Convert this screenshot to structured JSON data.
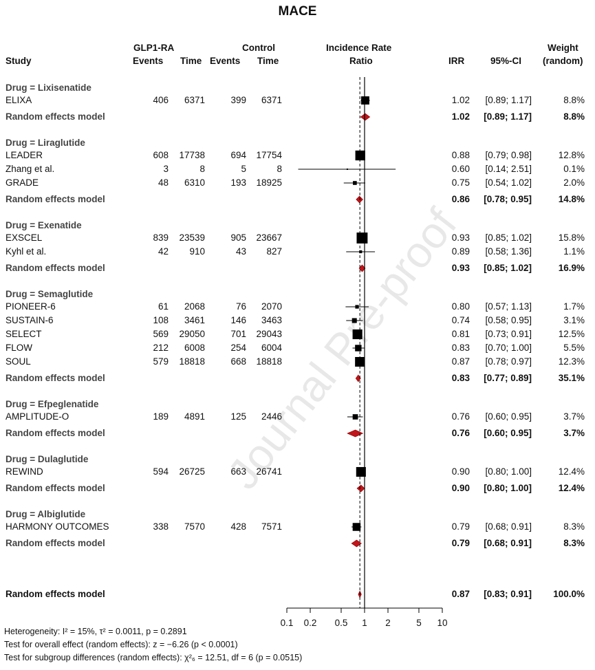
{
  "chart_data": {
    "type": "forest",
    "title": "MACE",
    "headers": {
      "study": "Study",
      "glp1": "GLP1-RA",
      "control": "Control",
      "events": "Events",
      "time": "Time",
      "effect_line1": "Incidence Rate",
      "effect_line2": "Ratio",
      "irr": "IRR",
      "ci": "95%-CI",
      "weight_line1": "Weight",
      "weight_line2": "(random)"
    },
    "x_axis": {
      "scale": "log",
      "ticks": [
        "0.1",
        "0.2",
        "0.5",
        "1",
        "2",
        "5",
        "10"
      ],
      "range": [
        0.1,
        10
      ],
      "null_line": 1
    },
    "groups": [
      {
        "label": "Drug = Lixisenatide",
        "studies": [
          {
            "name": "ELIXA",
            "e1": "406",
            "t1": "6371",
            "e2": "399",
            "t2": "6371",
            "irr": 1.02,
            "lo": 0.89,
            "hi": 1.17,
            "irr_text": "1.02",
            "ci_text": "[0.89; 1.17]",
            "weight": "8.8%"
          }
        ],
        "pooled": {
          "label": "Random effects model",
          "irr": 1.02,
          "lo": 0.89,
          "hi": 1.17,
          "irr_text": "1.02",
          "ci_text": "[0.89; 1.17]",
          "weight": "8.8%"
        }
      },
      {
        "label": "Drug = Liraglutide",
        "studies": [
          {
            "name": "LEADER",
            "e1": "608",
            "t1": "17738",
            "e2": "694",
            "t2": "17754",
            "irr": 0.88,
            "lo": 0.79,
            "hi": 0.98,
            "irr_text": "0.88",
            "ci_text": "[0.79; 0.98]",
            "weight": "12.8%"
          },
          {
            "name": "Zhang et al.",
            "e1": "3",
            "t1": "8",
            "e2": "5",
            "t2": "8",
            "irr": 0.6,
            "lo": 0.14,
            "hi": 2.51,
            "irr_text": "0.60",
            "ci_text": "[0.14; 2.51]",
            "weight": "0.1%"
          },
          {
            "name": "GRADE",
            "e1": "48",
            "t1": "6310",
            "e2": "193",
            "t2": "18925",
            "irr": 0.75,
            "lo": 0.54,
            "hi": 1.02,
            "irr_text": "0.75",
            "ci_text": "[0.54; 1.02]",
            "weight": "2.0%"
          }
        ],
        "pooled": {
          "label": "Random effects model",
          "irr": 0.86,
          "lo": 0.78,
          "hi": 0.95,
          "irr_text": "0.86",
          "ci_text": "[0.78; 0.95]",
          "weight": "14.8%"
        }
      },
      {
        "label": "Drug = Exenatide",
        "studies": [
          {
            "name": "EXSCEL",
            "e1": "839",
            "t1": "23539",
            "e2": "905",
            "t2": "23667",
            "irr": 0.93,
            "lo": 0.85,
            "hi": 1.02,
            "irr_text": "0.93",
            "ci_text": "[0.85; 1.02]",
            "weight": "15.8%"
          },
          {
            "name": "Kyhl et al.",
            "e1": "42",
            "t1": "910",
            "e2": "43",
            "t2": "827",
            "irr": 0.89,
            "lo": 0.58,
            "hi": 1.36,
            "irr_text": "0.89",
            "ci_text": "[0.58; 1.36]",
            "weight": "1.1%"
          }
        ],
        "pooled": {
          "label": "Random effects model",
          "irr": 0.93,
          "lo": 0.85,
          "hi": 1.02,
          "irr_text": "0.93",
          "ci_text": "[0.85; 1.02]",
          "weight": "16.9%"
        }
      },
      {
        "label": "Drug = Semaglutide",
        "studies": [
          {
            "name": "PIONEER-6",
            "e1": "61",
            "t1": "2068",
            "e2": "76",
            "t2": "2070",
            "irr": 0.8,
            "lo": 0.57,
            "hi": 1.13,
            "irr_text": "0.80",
            "ci_text": "[0.57; 1.13]",
            "weight": "1.7%"
          },
          {
            "name": "SUSTAIN-6",
            "e1": "108",
            "t1": "3461",
            "e2": "146",
            "t2": "3463",
            "irr": 0.74,
            "lo": 0.58,
            "hi": 0.95,
            "irr_text": "0.74",
            "ci_text": "[0.58; 0.95]",
            "weight": "3.1%"
          },
          {
            "name": "SELECT",
            "e1": "569",
            "t1": "29050",
            "e2": "701",
            "t2": "29043",
            "irr": 0.81,
            "lo": 0.73,
            "hi": 0.91,
            "irr_text": "0.81",
            "ci_text": "[0.73; 0.91]",
            "weight": "12.5%"
          },
          {
            "name": "FLOW",
            "e1": "212",
            "t1": "6008",
            "e2": "254",
            "t2": "6004",
            "irr": 0.83,
            "lo": 0.7,
            "hi": 1.0,
            "irr_text": "0.83",
            "ci_text": "[0.70; 1.00]",
            "weight": "5.5%"
          },
          {
            "name": "SOUL",
            "e1": "579",
            "t1": "18818",
            "e2": "668",
            "t2": "18818",
            "irr": 0.87,
            "lo": 0.78,
            "hi": 0.97,
            "irr_text": "0.87",
            "ci_text": "[0.78; 0.97]",
            "weight": "12.3%"
          }
        ],
        "pooled": {
          "label": "Random effects model",
          "irr": 0.83,
          "lo": 0.77,
          "hi": 0.89,
          "irr_text": "0.83",
          "ci_text": "[0.77; 0.89]",
          "weight": "35.1%"
        }
      },
      {
        "label": "Drug = Efpeglenatide",
        "studies": [
          {
            "name": "AMPLITUDE-O",
            "e1": "189",
            "t1": "4891",
            "e2": "125",
            "t2": "2446",
            "irr": 0.76,
            "lo": 0.6,
            "hi": 0.95,
            "irr_text": "0.76",
            "ci_text": "[0.60; 0.95]",
            "weight": "3.7%"
          }
        ],
        "pooled": {
          "label": "Random effects model",
          "irr": 0.76,
          "lo": 0.6,
          "hi": 0.95,
          "irr_text": "0.76",
          "ci_text": "[0.60; 0.95]",
          "weight": "3.7%"
        }
      },
      {
        "label": "Drug = Dulaglutide",
        "studies": [
          {
            "name": "REWIND",
            "e1": "594",
            "t1": "26725",
            "e2": "663",
            "t2": "26741",
            "irr": 0.9,
            "lo": 0.8,
            "hi": 1.0,
            "irr_text": "0.90",
            "ci_text": "[0.80; 1.00]",
            "weight": "12.4%"
          }
        ],
        "pooled": {
          "label": "Random effects model",
          "irr": 0.9,
          "lo": 0.8,
          "hi": 1.0,
          "irr_text": "0.90",
          "ci_text": "[0.80; 1.00]",
          "weight": "12.4%"
        }
      },
      {
        "label": "Drug = Albiglutide",
        "studies": [
          {
            "name": "HARMONY OUTCOMES",
            "e1": "338",
            "t1": "7570",
            "e2": "428",
            "t2": "7571",
            "irr": 0.79,
            "lo": 0.68,
            "hi": 0.91,
            "irr_text": "0.79",
            "ci_text": "[0.68; 0.91]",
            "weight": "8.3%"
          }
        ],
        "pooled": {
          "label": "Random effects model",
          "irr": 0.79,
          "lo": 0.68,
          "hi": 0.91,
          "irr_text": "0.79",
          "ci_text": "[0.68; 0.91]",
          "weight": "8.3%"
        }
      }
    ],
    "overall": {
      "label": "Random effects model",
      "irr": 0.87,
      "lo": 0.83,
      "hi": 0.91,
      "irr_text": "0.87",
      "ci_text": "[0.83; 0.91]",
      "weight": "100.0%"
    },
    "footnotes": [
      "Heterogeneity: I² = 15%, τ² = 0.0011, p = 0.2891",
      "Test for overall effect (random effects): z = −6.26 (p < 0.0001)",
      "Test for subgroup differences (random effects): χ²₆ = 12.51, df = 6 (p = 0.0515)"
    ],
    "colors": {
      "square": "#000000",
      "diamond": "#c0151a",
      "diamond_stroke": "#8b0000"
    }
  },
  "watermark": "Journal Pre-proof"
}
